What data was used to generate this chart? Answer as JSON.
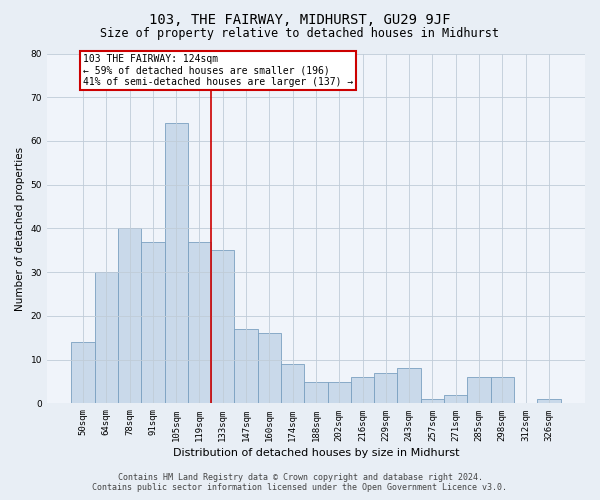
{
  "title": "103, THE FAIRWAY, MIDHURST, GU29 9JF",
  "subtitle": "Size of property relative to detached houses in Midhurst",
  "xlabel": "Distribution of detached houses by size in Midhurst",
  "ylabel": "Number of detached properties",
  "bar_labels": [
    "50sqm",
    "64sqm",
    "78sqm",
    "91sqm",
    "105sqm",
    "119sqm",
    "133sqm",
    "147sqm",
    "160sqm",
    "174sqm",
    "188sqm",
    "202sqm",
    "216sqm",
    "229sqm",
    "243sqm",
    "257sqm",
    "271sqm",
    "285sqm",
    "298sqm",
    "312sqm",
    "326sqm"
  ],
  "bar_values": [
    14,
    30,
    40,
    37,
    64,
    37,
    35,
    17,
    16,
    9,
    5,
    5,
    6,
    7,
    8,
    1,
    2,
    6,
    6,
    0,
    1
  ],
  "bar_color": "#c9d9ea",
  "bar_edge_color": "#7aa0c0",
  "vline_x_index": 5,
  "vline_color": "#cc0000",
  "ylim": [
    0,
    80
  ],
  "yticks": [
    0,
    10,
    20,
    30,
    40,
    50,
    60,
    70,
    80
  ],
  "annotation_title": "103 THE FAIRWAY: 124sqm",
  "annotation_line1": "← 59% of detached houses are smaller (196)",
  "annotation_line2": "41% of semi-detached houses are larger (137) →",
  "footer_line1": "Contains HM Land Registry data © Crown copyright and database right 2024.",
  "footer_line2": "Contains public sector information licensed under the Open Government Licence v3.0.",
  "bg_color": "#e8eef5",
  "plot_bg_color": "#f0f4fa",
  "grid_color": "#c0ccd8",
  "title_fontsize": 10,
  "subtitle_fontsize": 8.5,
  "xlabel_fontsize": 8,
  "ylabel_fontsize": 7.5,
  "tick_fontsize": 6.5,
  "ann_fontsize": 7,
  "footer_fontsize": 6
}
